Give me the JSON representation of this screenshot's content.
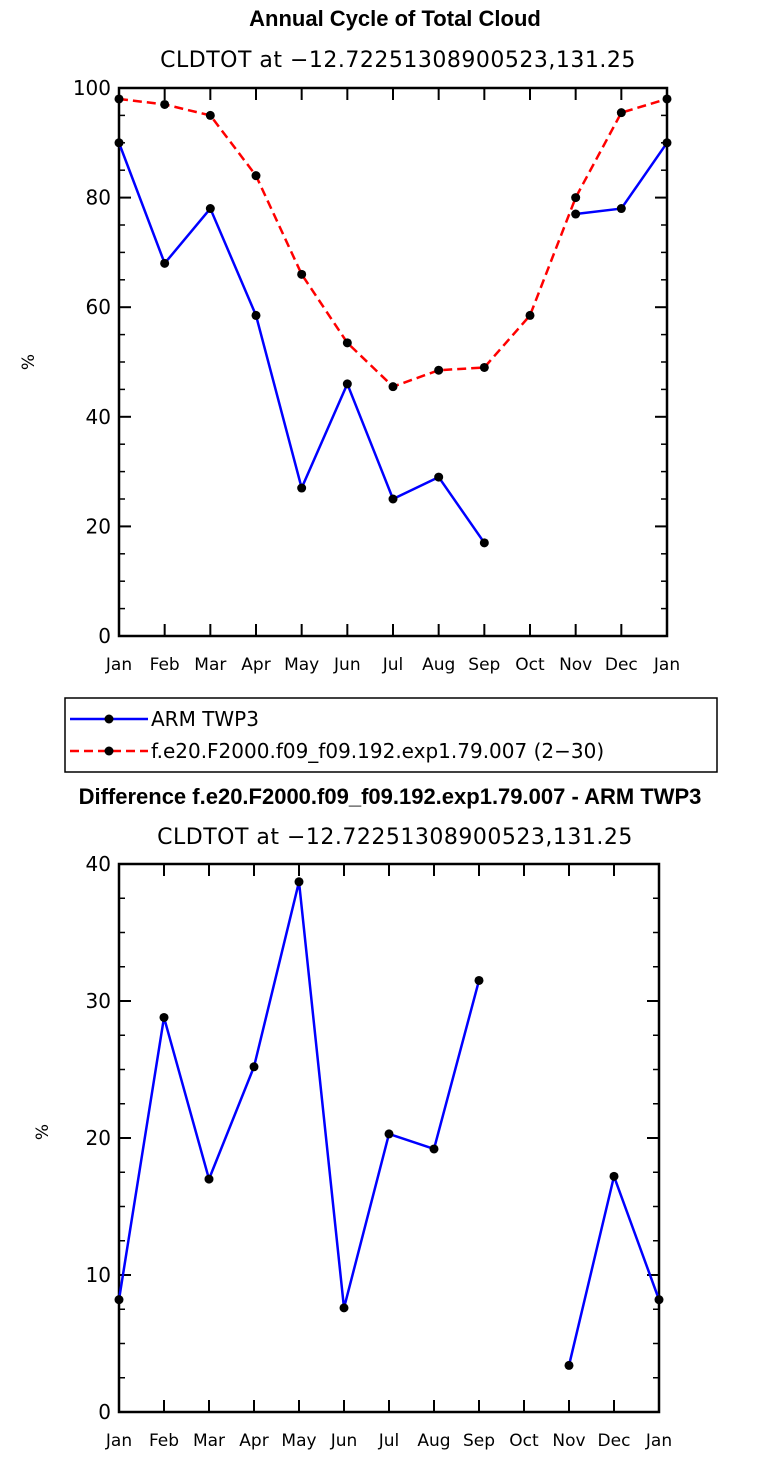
{
  "chart_data": [
    {
      "type": "line",
      "title": "Annual Cycle of Total Cloud",
      "subtitle": "CLDTOT at −12.72251308900523,131.25",
      "ylabel": "%",
      "xlabel": "",
      "ylim": [
        0,
        100
      ],
      "yticks": [
        "0",
        "20",
        "40",
        "60",
        "80",
        "100"
      ],
      "categories": [
        "Jan",
        "Feb",
        "Mar",
        "Apr",
        "May",
        "Jun",
        "Jul",
        "Aug",
        "Sep",
        "Oct",
        "Nov",
        "Dec",
        "Jan"
      ],
      "series": [
        {
          "name": "ARM TWP3",
          "color": "#0000ff",
          "dash": "solid",
          "values": [
            90,
            68,
            78,
            58.5,
            27,
            46,
            25,
            29,
            17,
            null,
            77,
            78,
            90
          ]
        },
        {
          "name": "f.e20.F2000.f09_f09.192.exp1.79.007 (2−30)",
          "color": "#ff0000",
          "dash": "dashed",
          "values": [
            98,
            97,
            95,
            84,
            66,
            53.5,
            45.5,
            48.5,
            49,
            58.5,
            80,
            95.5,
            98
          ]
        }
      ],
      "legend": "bottom"
    },
    {
      "type": "line",
      "title": "Difference f.e20.F2000.f09_f09.192.exp1.79.007 - ARM TWP3",
      "subtitle": "CLDTOT at −12.72251308900523,131.25",
      "ylabel": "%",
      "xlabel": "",
      "ylim": [
        0,
        40
      ],
      "yticks": [
        "0",
        "10",
        "20",
        "30",
        "40"
      ],
      "categories": [
        "Jan",
        "Feb",
        "Mar",
        "Apr",
        "May",
        "Jun",
        "Jul",
        "Aug",
        "Sep",
        "Oct",
        "Nov",
        "Dec",
        "Jan"
      ],
      "series": [
        {
          "name": "Difference",
          "color": "#0000ff",
          "dash": "solid",
          "values": [
            8.2,
            28.8,
            17,
            25.2,
            38.7,
            7.6,
            20.3,
            19.2,
            31.5,
            null,
            3.4,
            17.2,
            8.2
          ]
        }
      ]
    }
  ]
}
